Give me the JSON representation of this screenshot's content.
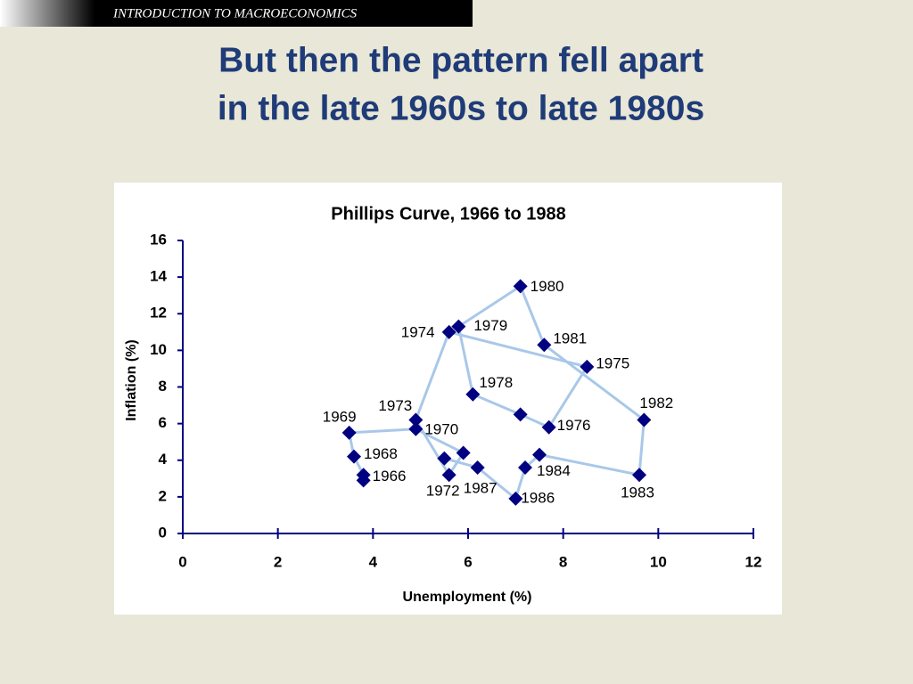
{
  "header": "INTRODUCTION TO MACROECONOMICS",
  "slide_title": [
    "But then the pattern fell apart",
    "in the late 1960s to late 1980s"
  ],
  "chart_data": {
    "type": "scatter",
    "title": "Phillips Curve, 1966 to 1988",
    "x_label": "Unemployment (%)",
    "y_label": "Inflation (%)",
    "x": [
      3.8,
      3.8,
      3.6,
      3.5,
      4.9,
      5.9,
      5.6,
      4.9,
      5.6,
      8.5,
      7.7,
      7.1,
      6.1,
      5.8,
      7.1,
      7.6,
      9.7,
      9.6,
      7.5,
      7.2,
      7.0,
      6.2,
      5.5
    ],
    "series": [
      {
        "color": "#000080",
        "line_color": "#a9c8e8",
        "values": [
          2.9,
          3.2,
          4.2,
          5.5,
          5.7,
          4.4,
          3.2,
          6.2,
          11.0,
          9.1,
          5.8,
          6.5,
          7.6,
          11.3,
          13.5,
          10.3,
          6.2,
          3.2,
          4.3,
          3.6,
          1.9,
          3.6,
          4.1
        ]
      }
    ],
    "point_labels": [
      "1966",
      null,
      "1968",
      "1969",
      "1970",
      null,
      "1972",
      "1973",
      "1974",
      "1975",
      "1976",
      null,
      "1978",
      "1979",
      "1980",
      "1981",
      "1982",
      "1983",
      "1984",
      null,
      "1986",
      "1987",
      null
    ],
    "xlim": [
      0,
      12
    ],
    "xticks": [
      0,
      2,
      4,
      6,
      8,
      10,
      12
    ],
    "ylim": [
      0,
      16
    ],
    "yticks": [
      0,
      2,
      4,
      6,
      8,
      10,
      12,
      14,
      16
    ],
    "grid": false
  }
}
